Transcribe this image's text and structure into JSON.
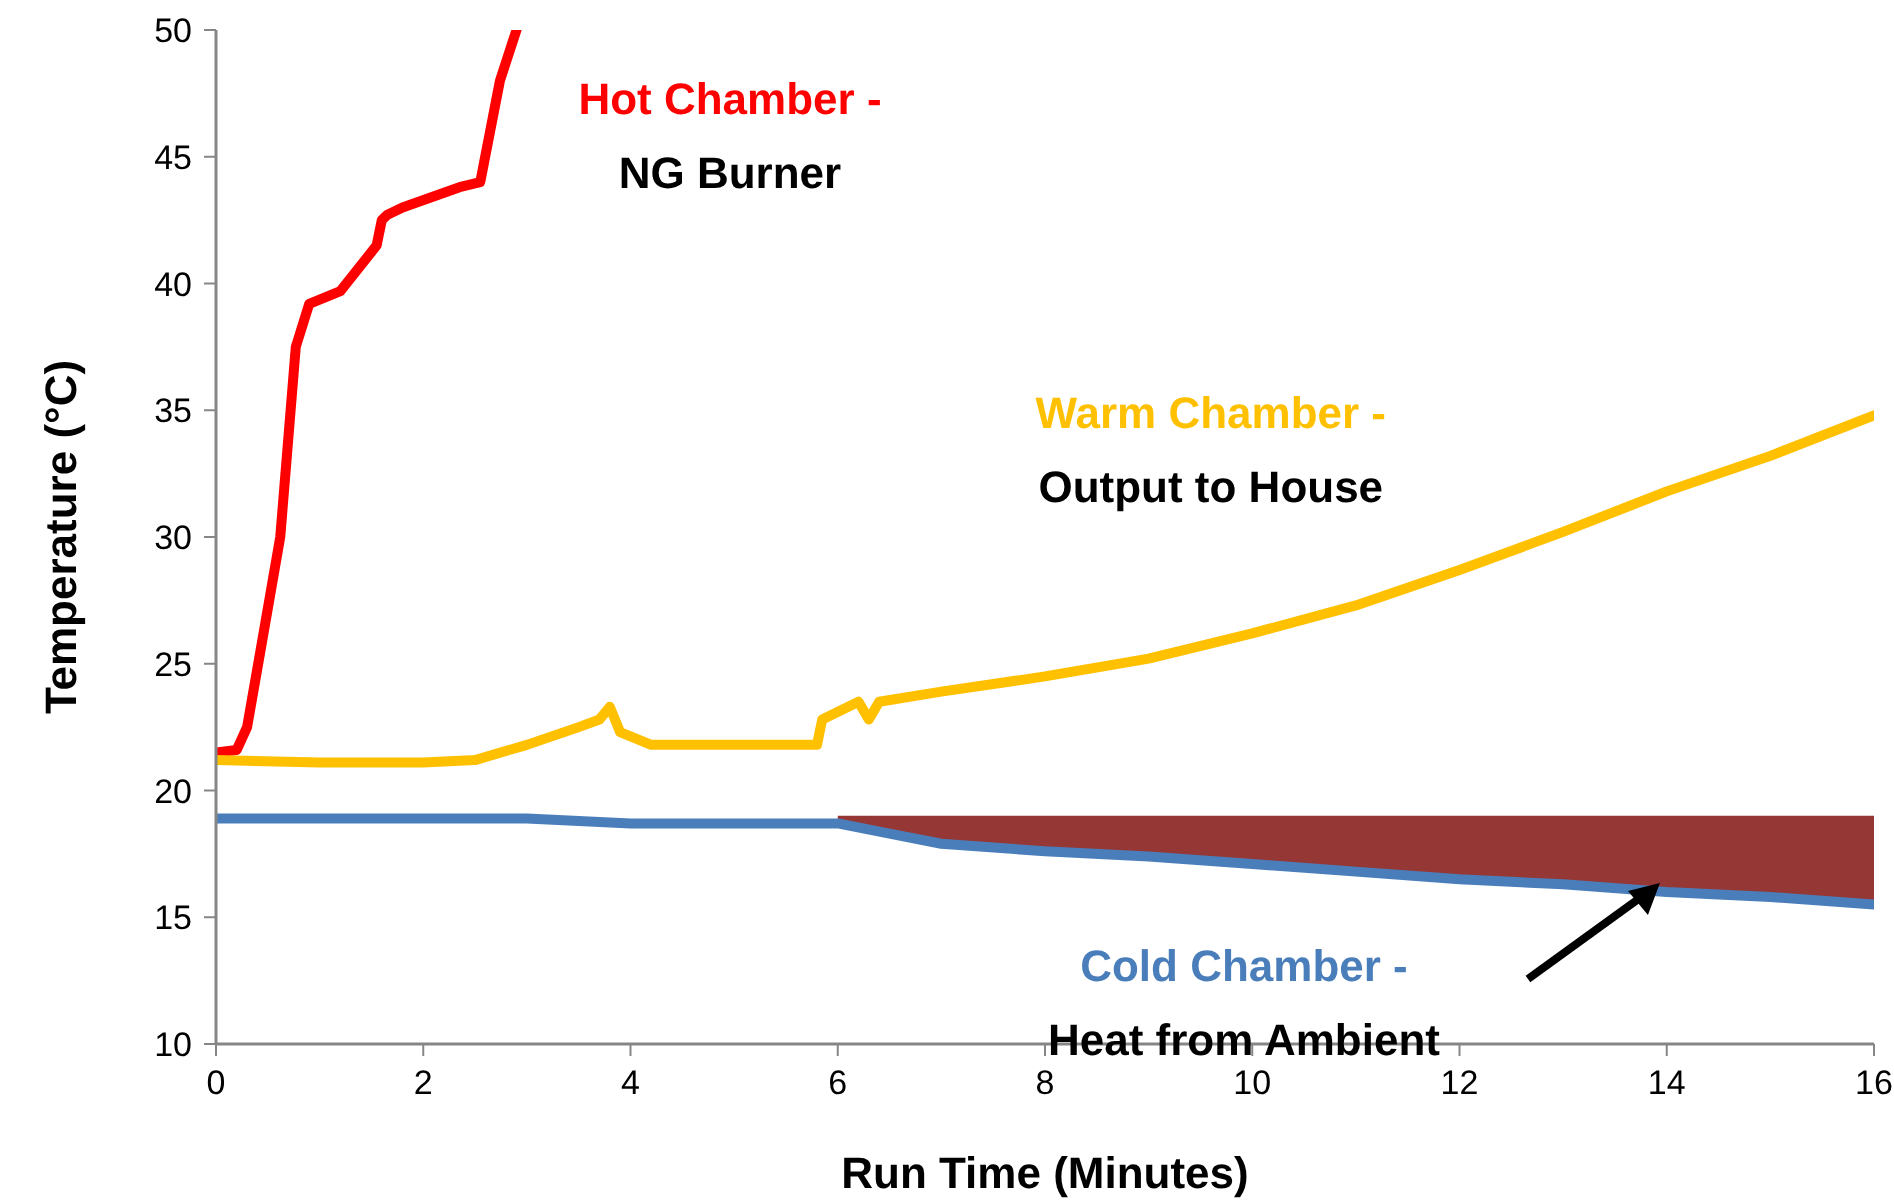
{
  "chart_data": {
    "type": "line",
    "xlabel": "Run Time (Minutes)",
    "ylabel": "Temperature (°C)",
    "xlim": [
      0,
      16
    ],
    "ylim": [
      10,
      50
    ],
    "xticks": [
      0,
      2,
      4,
      6,
      8,
      10,
      12,
      14,
      16
    ],
    "yticks": [
      10,
      15,
      20,
      25,
      30,
      35,
      40,
      45,
      50
    ],
    "grid": false,
    "line_style": "solid",
    "annotations": [
      "NG Burner",
      "Output to House",
      "Heat from Ambient"
    ],
    "series": [
      {
        "name": "Hot Chamber -",
        "color": "#ff0000",
        "x": [
          0,
          0.2,
          0.3,
          0.45,
          0.62,
          0.77,
          0.9,
          1.2,
          1.55,
          1.6,
          1.65,
          1.8,
          2.35,
          2.55,
          2.74,
          2.9
        ],
        "values": [
          21.5,
          21.6,
          22.5,
          26,
          30,
          37.5,
          39.2,
          39.7,
          41.5,
          42.5,
          42.7,
          43,
          43.8,
          44,
          48,
          50
        ]
      },
      {
        "name": "Warm Chamber -",
        "color": "#ffc000",
        "x": [
          0,
          1,
          2,
          2.5,
          3,
          3.5,
          3.7,
          3.8,
          3.9,
          4.2,
          5,
          5.8,
          5.85,
          6.2,
          6.3,
          6.4,
          7,
          8,
          9,
          10,
          11,
          12,
          13,
          14,
          15,
          16
        ],
        "values": [
          21.2,
          21.1,
          21.1,
          21.2,
          21.8,
          22.5,
          22.8,
          23.3,
          22.3,
          21.8,
          21.8,
          21.8,
          22.8,
          23.5,
          22.8,
          23.5,
          23.9,
          24.5,
          25.2,
          26.2,
          27.3,
          28.7,
          30.2,
          31.8,
          33.2,
          34.8
        ]
      },
      {
        "name": "Cold Chamber -",
        "color": "#4a7ebb",
        "x": [
          0,
          1,
          2,
          3,
          4,
          5,
          6,
          6.5,
          7,
          8,
          9,
          10,
          11,
          12,
          13,
          14,
          15,
          16
        ],
        "values": [
          18.9,
          18.9,
          18.9,
          18.9,
          18.7,
          18.7,
          18.7,
          18.3,
          17.9,
          17.6,
          17.4,
          17.1,
          16.8,
          16.5,
          16.3,
          16,
          15.8,
          15.5
        ]
      },
      {
        "type": "area",
        "color": "#953735",
        "x": [
          6,
          6.5,
          7,
          8,
          9,
          10,
          11,
          12,
          13,
          14,
          15,
          16
        ],
        "values": [
          19,
          19,
          19,
          19,
          19,
          19,
          19,
          19,
          19,
          19,
          19,
          19
        ]
      }
    ]
  }
}
